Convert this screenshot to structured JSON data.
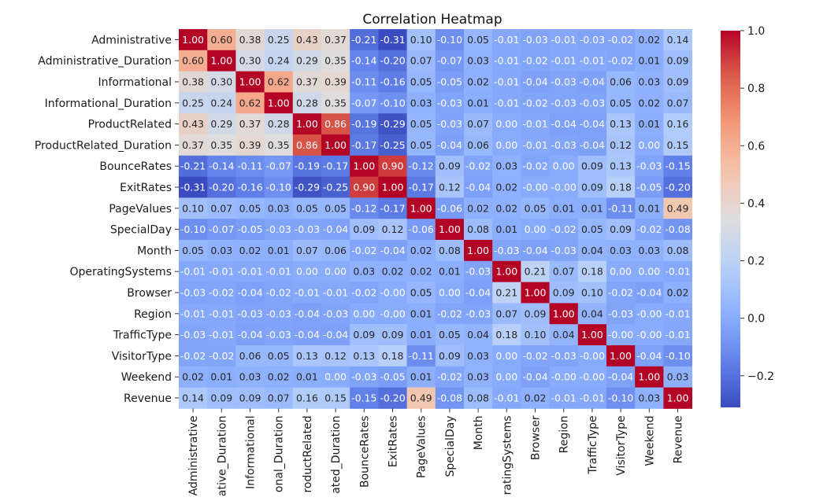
{
  "chart_data": {
    "type": "heatmap",
    "title": "Correlation Heatmap",
    "colormap": "coolwarm",
    "colorbar": {
      "min": -0.31,
      "max": 1.0,
      "ticks": [
        -0.2,
        0.0,
        0.2,
        0.4,
        0.6,
        0.8,
        1.0
      ],
      "tick_labels": [
        "−0.2",
        "0.0",
        "0.2",
        "0.4",
        "0.6",
        "0.8",
        "1.0"
      ]
    },
    "row_labels": [
      "Administrative",
      "Administrative_Duration",
      "Informational",
      "Informational_Duration",
      "ProductRelated",
      "ProductRelated_Duration",
      "BounceRates",
      "ExitRates",
      "PageValues",
      "SpecialDay",
      "Month",
      "OperatingSystems",
      "Browser",
      "Region",
      "TrafficType",
      "VisitorType",
      "Weekend",
      "Revenue"
    ],
    "col_labels": [
      "Administrative",
      "ative_Duration",
      "Informational",
      "onal_Duration",
      "roductRelated",
      "ated_Duration",
      "BounceRates",
      "ExitRates",
      "PageValues",
      "SpecialDay",
      "Month",
      "ratingSystems",
      "Browser",
      "Region",
      "TrafficType",
      "VisitorType",
      "Weekend",
      "Revenue"
    ],
    "values": [
      [
        1.0,
        0.6,
        0.38,
        0.25,
        0.43,
        0.37,
        -0.21,
        -0.31,
        0.1,
        -0.1,
        0.05,
        -0.01,
        -0.03,
        -0.01,
        -0.03,
        -0.02,
        0.02,
        0.14
      ],
      [
        0.6,
        1.0,
        0.3,
        0.24,
        0.29,
        0.35,
        -0.14,
        -0.2,
        0.07,
        -0.07,
        0.03,
        -0.01,
        -0.02,
        -0.01,
        -0.01,
        -0.02,
        0.01,
        0.09
      ],
      [
        0.38,
        0.3,
        1.0,
        0.62,
        0.37,
        0.39,
        -0.11,
        -0.16,
        0.05,
        -0.05,
        0.02,
        -0.01,
        -0.04,
        -0.03,
        -0.04,
        0.06,
        0.03,
        0.09
      ],
      [
        0.25,
        0.24,
        0.62,
        1.0,
        0.28,
        0.35,
        -0.07,
        -0.1,
        0.03,
        -0.03,
        0.01,
        -0.01,
        -0.02,
        -0.03,
        -0.03,
        0.05,
        0.02,
        0.07
      ],
      [
        0.43,
        0.29,
        0.37,
        0.28,
        1.0,
        0.86,
        -0.19,
        -0.29,
        0.05,
        -0.03,
        0.07,
        0.0,
        -0.01,
        -0.04,
        -0.04,
        0.13,
        0.01,
        0.16
      ],
      [
        0.37,
        0.35,
        0.39,
        0.35,
        0.86,
        1.0,
        -0.17,
        -0.25,
        0.05,
        -0.04,
        0.06,
        0.0,
        -0.01,
        -0.03,
        -0.04,
        0.12,
        0.0,
        0.15
      ],
      [
        -0.21,
        -0.14,
        -0.11,
        -0.07,
        -0.19,
        -0.17,
        1.0,
        0.9,
        -0.12,
        0.09,
        -0.02,
        0.03,
        -0.02,
        0.0,
        0.09,
        0.13,
        -0.03,
        -0.15
      ],
      [
        -0.31,
        -0.2,
        -0.16,
        -0.1,
        -0.29,
        -0.25,
        0.9,
        1.0,
        -0.17,
        0.12,
        -0.04,
        0.02,
        -0.0,
        -0.0,
        0.09,
        0.18,
        -0.05,
        -0.2
      ],
      [
        0.1,
        0.07,
        0.05,
        0.03,
        0.05,
        0.05,
        -0.12,
        -0.17,
        1.0,
        -0.06,
        0.02,
        0.02,
        0.05,
        0.01,
        0.01,
        -0.11,
        0.01,
        0.49
      ],
      [
        -0.1,
        -0.07,
        -0.05,
        -0.03,
        -0.03,
        -0.04,
        0.09,
        0.12,
        -0.06,
        1.0,
        0.08,
        0.01,
        0.0,
        -0.02,
        0.05,
        0.09,
        -0.02,
        -0.08
      ],
      [
        0.05,
        0.03,
        0.02,
        0.01,
        0.07,
        0.06,
        -0.02,
        -0.04,
        0.02,
        0.08,
        1.0,
        -0.03,
        -0.04,
        -0.03,
        0.04,
        0.03,
        0.03,
        0.08
      ],
      [
        -0.01,
        -0.01,
        -0.01,
        -0.01,
        0.0,
        0.0,
        0.03,
        0.02,
        0.02,
        0.01,
        -0.03,
        1.0,
        0.21,
        0.07,
        0.18,
        0.0,
        0.0,
        -0.01
      ],
      [
        -0.03,
        -0.02,
        -0.04,
        -0.02,
        -0.01,
        -0.01,
        -0.02,
        -0.0,
        0.05,
        0.0,
        -0.04,
        0.21,
        1.0,
        0.09,
        0.1,
        -0.02,
        -0.04,
        0.02
      ],
      [
        -0.01,
        -0.01,
        -0.03,
        -0.03,
        -0.04,
        -0.03,
        0.0,
        -0.0,
        0.01,
        -0.02,
        -0.03,
        0.07,
        0.09,
        1.0,
        0.04,
        -0.03,
        -0.0,
        -0.01
      ],
      [
        -0.03,
        -0.01,
        -0.04,
        -0.03,
        -0.04,
        -0.04,
        0.09,
        0.09,
        0.01,
        0.05,
        0.04,
        0.18,
        0.1,
        0.04,
        1.0,
        -0.0,
        -0.0,
        -0.01
      ],
      [
        -0.02,
        -0.02,
        0.06,
        0.05,
        0.13,
        0.12,
        0.13,
        0.18,
        -0.11,
        0.09,
        0.03,
        0.0,
        -0.02,
        -0.03,
        -0.0,
        1.0,
        -0.04,
        -0.1
      ],
      [
        0.02,
        0.01,
        0.03,
        0.02,
        0.01,
        0.0,
        -0.03,
        -0.05,
        0.01,
        -0.02,
        0.03,
        0.0,
        -0.04,
        -0.0,
        -0.0,
        -0.04,
        1.0,
        0.03
      ],
      [
        0.14,
        0.09,
        0.09,
        0.07,
        0.16,
        0.15,
        -0.15,
        -0.2,
        0.49,
        -0.08,
        0.08,
        -0.01,
        0.02,
        -0.01,
        -0.01,
        -0.1,
        0.03,
        1.0
      ]
    ]
  }
}
